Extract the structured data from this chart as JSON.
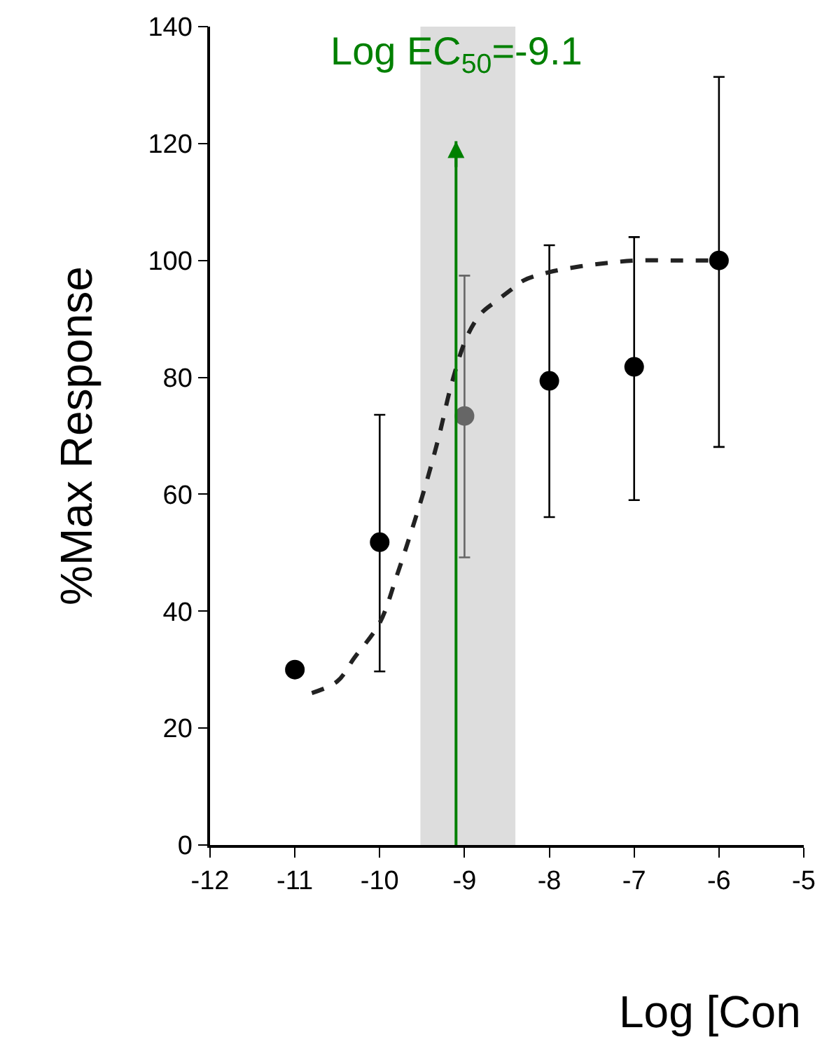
{
  "chart_data": {
    "type": "scatter",
    "xlabel": "Log [Con",
    "ylabel": "%Max Response",
    "xlim": [
      -12,
      -5
    ],
    "xticks": [
      -12,
      -11,
      -10,
      -9,
      -8,
      -7,
      -6,
      -5
    ],
    "ylim": [
      0,
      140
    ],
    "yticks": [
      0,
      20,
      40,
      60,
      80,
      100,
      120,
      140
    ],
    "grid": false,
    "series": [
      {
        "marker": "circle",
        "x": [
          -11,
          -10,
          -9,
          -8,
          -7,
          -6
        ],
        "values": [
          30,
          51.8,
          73.4,
          79.4,
          81.8,
          100
        ],
        "colors": [
          "#000000",
          "#000000",
          "#666666",
          "#000000",
          "#000000",
          "#000000"
        ],
        "errors": [
          null,
          [
            29.7,
            73.6
          ],
          [
            49.2,
            97.4
          ],
          [
            56.1,
            102.6
          ],
          [
            59,
            104
          ],
          [
            68.1,
            131.4
          ]
        ]
      },
      {
        "type": "line",
        "line_style": "dashed",
        "color": "#222222",
        "x": [
          -10.8,
          -10.5,
          -10.3,
          -10.0,
          -9.8,
          -9.63,
          -9.45,
          -9.3,
          -9.15,
          -8.97,
          -8.8,
          -8.63,
          -8.45,
          -8.3,
          -8.0,
          -7.63,
          -7.3,
          -6.97,
          -6.5,
          -6.0
        ],
        "values": [
          26,
          28,
          32,
          38,
          46,
          53.5,
          62,
          70,
          79,
          87,
          91,
          93,
          95,
          96.6,
          98,
          99,
          99.6,
          100,
          100,
          100
        ]
      }
    ],
    "bands": [
      {
        "axis": "x",
        "from": -9.52,
        "to": -8.4,
        "color": "#dddddd"
      }
    ],
    "ref_lines": [
      {
        "axis": "x",
        "value": -9.1,
        "label": "Log EC$_{50}$=-9.1",
        "color": "#008000"
      }
    ]
  }
}
